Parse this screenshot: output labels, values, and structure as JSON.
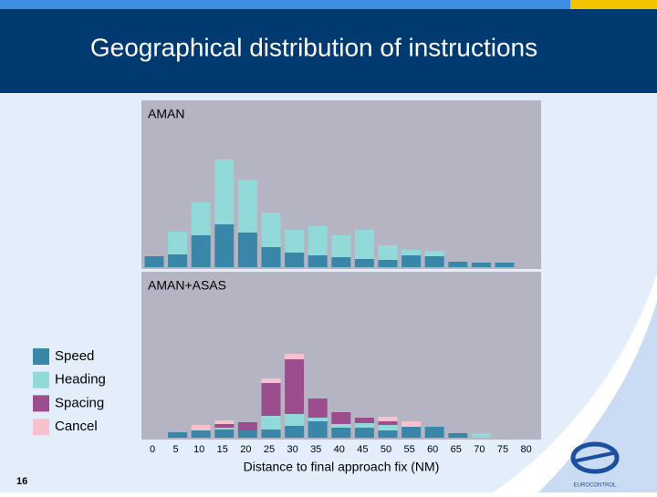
{
  "header": {
    "title": "Geographical distribution of instructions"
  },
  "page_number": "16",
  "logo": {
    "text": "EUROCONTROL"
  },
  "chart_data": [
    {
      "type": "stacked-bar",
      "title": "AMAN",
      "ylim": [
        0,
        183
      ],
      "series": [
        {
          "name": "Speed",
          "color": "#3a86a9",
          "values": [
            12,
            14,
            35,
            47,
            38,
            22,
            16,
            13,
            11,
            9,
            8,
            13,
            12,
            6,
            5,
            5,
            0
          ]
        },
        {
          "name": "Heading",
          "color": "#92d9d9",
          "values": [
            0,
            25,
            36,
            71,
            58,
            38,
            25,
            32,
            24,
            32,
            16,
            6,
            6,
            0,
            0,
            0,
            0
          ]
        }
      ]
    },
    {
      "type": "stacked-bar",
      "title": "AMAN+ASAS",
      "xlabel": "Distance to final approach fix (NM)",
      "ylim": [
        0,
        182
      ],
      "categories": [
        "0",
        "5",
        "10",
        "15",
        "20",
        "25",
        "30",
        "35",
        "40",
        "45",
        "50",
        "55",
        "60",
        "65",
        "70",
        "75",
        "80"
      ],
      "series": [
        {
          "name": "Speed",
          "color": "#3a86a9",
          "values": [
            0,
            6,
            8,
            9,
            8,
            9,
            13,
            18,
            11,
            11,
            8,
            12,
            12,
            5,
            0,
            0,
            0
          ]
        },
        {
          "name": "Heading",
          "color": "#92d9d9",
          "values": [
            0,
            0,
            0,
            2,
            0,
            15,
            13,
            4,
            4,
            5,
            6,
            0,
            0,
            0,
            5,
            0,
            0
          ]
        },
        {
          "name": "Spacing",
          "color": "#9b4d8d",
          "values": [
            0,
            0,
            0,
            4,
            9,
            36,
            60,
            21,
            13,
            6,
            4,
            0,
            0,
            0,
            0,
            0,
            0
          ]
        },
        {
          "name": "Cancel",
          "color": "#f7c2cd",
          "values": [
            0,
            0,
            6,
            4,
            0,
            5,
            6,
            0,
            0,
            0,
            5,
            6,
            0,
            0,
            0,
            0,
            0
          ]
        }
      ]
    }
  ]
}
